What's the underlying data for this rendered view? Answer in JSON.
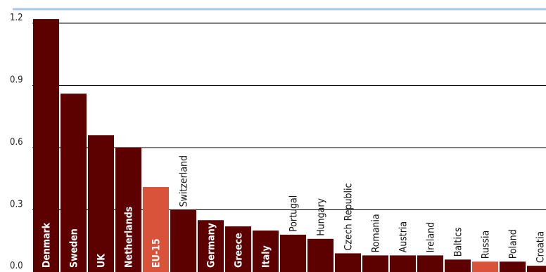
{
  "chart_data": {
    "type": "bar",
    "title": "",
    "xlabel": "",
    "ylabel": "",
    "ylim": [
      0,
      1.2
    ],
    "yticks": [
      "0.0",
      "0.3",
      "0.6",
      "0.9",
      "1.2"
    ],
    "grid": true,
    "legend": "none",
    "categories": [
      "Denmark",
      "Sweden",
      "UK",
      "Netherlands",
      "EU-15",
      "Switzerland",
      "Germany",
      "Greece",
      "Italy",
      "Portugal",
      "Hungary",
      "Czech Republic",
      "Romania",
      "Austria",
      "Ireland",
      "Baltics",
      "Russia",
      "Poland",
      "Croatia"
    ],
    "values": [
      1.22,
      0.86,
      0.66,
      0.6,
      0.41,
      0.3,
      0.25,
      0.22,
      0.2,
      0.18,
      0.16,
      0.09,
      0.08,
      0.08,
      0.08,
      0.06,
      0.05,
      0.05,
      0.03
    ],
    "highlighted": [
      "EU-15",
      "Russia"
    ],
    "colors": {
      "bar": "#5c0000",
      "highlight": "#d9533b",
      "top_rule": "#a8c8e8",
      "grid": "#000000",
      "label_inside": "#ffffff",
      "label_above": "#111111"
    }
  }
}
